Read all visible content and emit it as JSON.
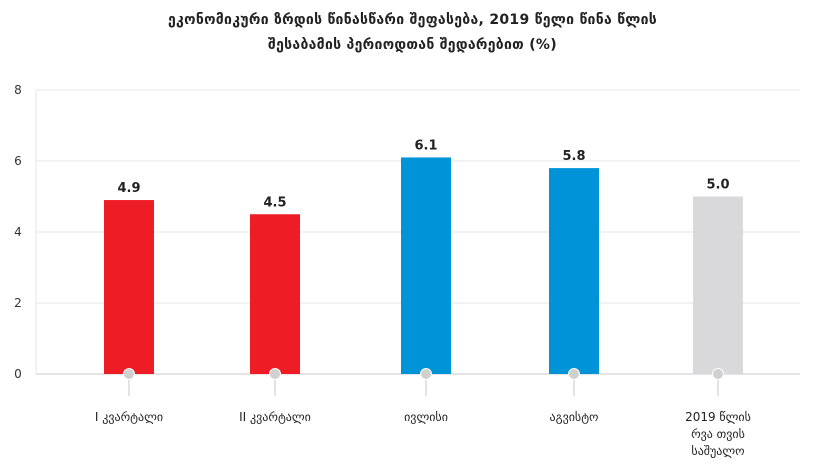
{
  "chart_data": {
    "type": "bar",
    "title_line1": "ეკონომიკური ზრდის წინასწარი შეფასება, 2019 წელი წინა წლის",
    "title_line2": "შესაბამის პერიოდთან შედარებით (%)",
    "categories": [
      [
        "I კვარტალი"
      ],
      [
        "II კვარტალი"
      ],
      [
        "ივლისი"
      ],
      [
        "აგვისტო"
      ],
      [
        "2019 წლის",
        "რვა თვის",
        "საშუალო"
      ]
    ],
    "values": [
      4.9,
      4.5,
      6.1,
      5.8,
      5.0
    ],
    "value_labels": [
      "4.9",
      "4.5",
      "6.1",
      "5.8",
      "5.0"
    ],
    "bar_colors": [
      "#ee1c25",
      "#ee1c25",
      "#0093d8",
      "#0093d8",
      "#d9d9db"
    ],
    "ylim": [
      0,
      8
    ],
    "yticks": [
      "0",
      "2",
      "4",
      "6",
      "8"
    ],
    "grid": true
  }
}
